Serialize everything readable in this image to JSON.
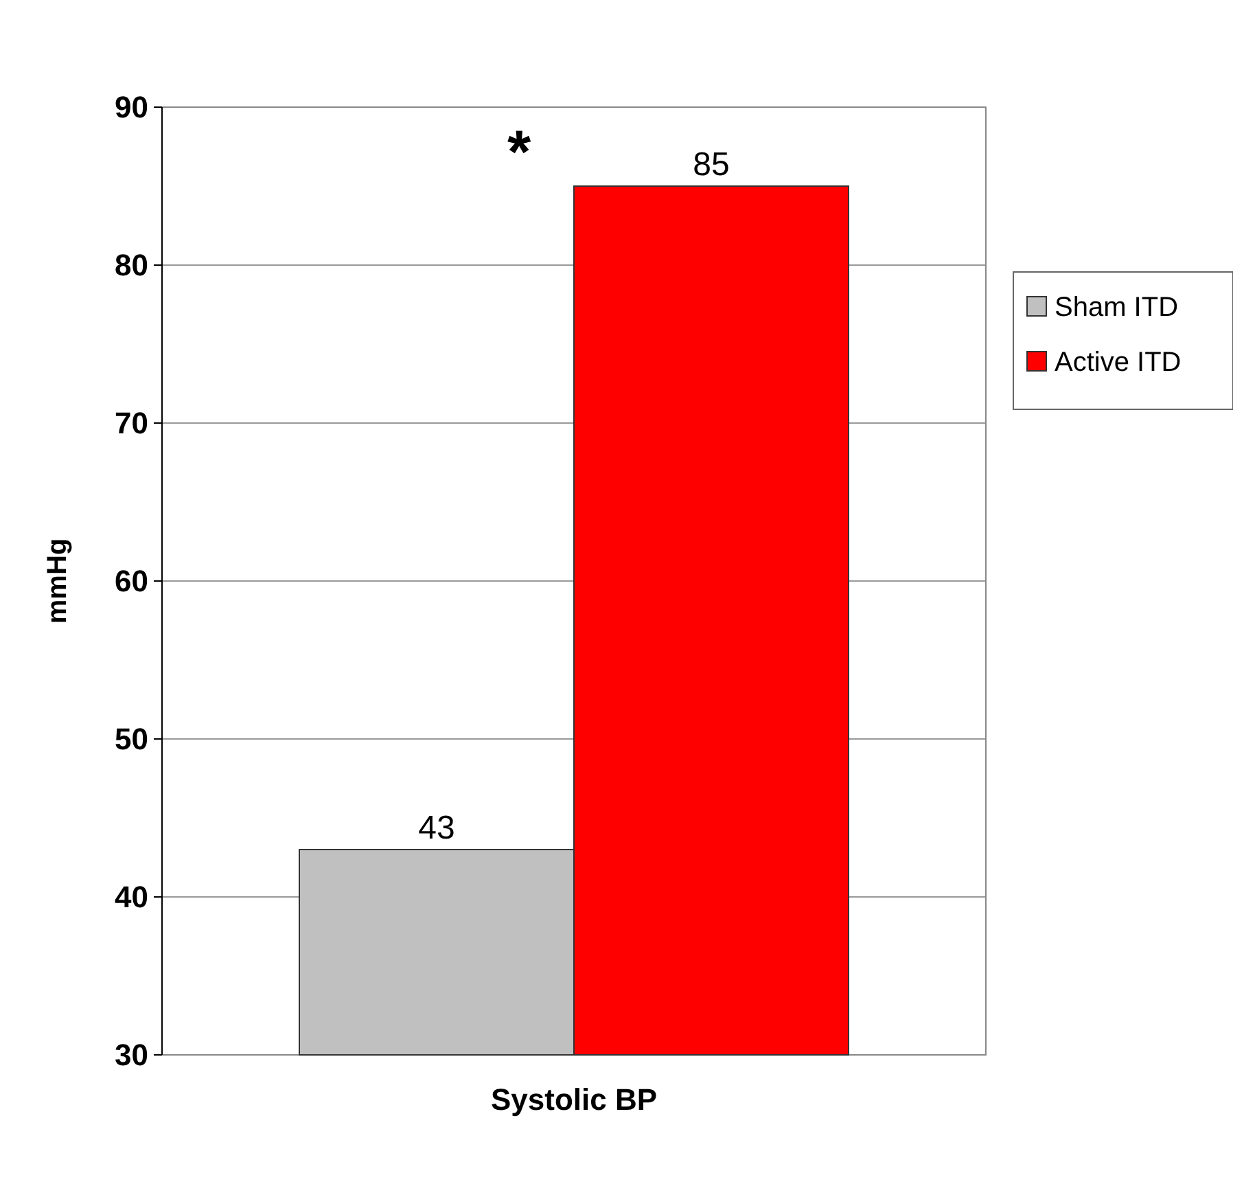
{
  "chart_data": {
    "type": "bar",
    "ylabel": "mmHg",
    "categories": [
      "Systolic BP"
    ],
    "series": [
      {
        "name": "Sham ITD",
        "color": "#c0c0c0",
        "values": [
          43
        ]
      },
      {
        "name": "Active ITD",
        "color": "#ff0000",
        "values": [
          85
        ]
      }
    ],
    "ylim": [
      30,
      90
    ],
    "yticks": [
      30,
      40,
      50,
      60,
      70,
      80,
      90
    ],
    "grid": "y",
    "legend": "right",
    "data_labels": true,
    "annotations": [
      {
        "text": "*",
        "x": "Systolic BP",
        "y": 85
      }
    ]
  }
}
